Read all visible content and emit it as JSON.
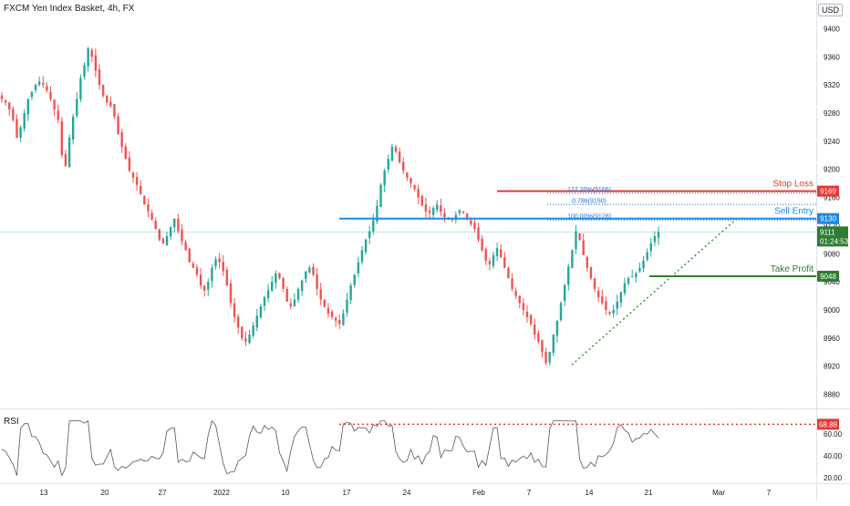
{
  "header": {
    "symbol_title": "FXCM Yen Index Basket, 4h, FX",
    "currency_badge": "USD"
  },
  "price_axis": {
    "ticks": [
      "9400",
      "9360",
      "9320",
      "9280",
      "9240",
      "9200",
      "9160",
      "9120",
      "9080",
      "9040",
      "9000",
      "8960",
      "8920",
      "8880"
    ]
  },
  "rsi_axis": {
    "ticks": [
      "60.00",
      "40.00",
      "20.00"
    ]
  },
  "time_axis": {
    "ticks": [
      "13",
      "20",
      "27",
      "2022",
      "10",
      "17",
      "24",
      "Feb",
      "7",
      "14",
      "21",
      "Mar",
      "7"
    ]
  },
  "levels": {
    "stop_loss": {
      "label": "Stop Loss",
      "value": "9169",
      "color": "#e53935"
    },
    "sell_entry": {
      "label": "Sell Entry",
      "value": "9130",
      "color": "#1e88e5"
    },
    "take_profit": {
      "label": "Take Profit",
      "value": "9048",
      "color": "#2e7d32"
    },
    "current": {
      "value": "9111",
      "countdown": "01:24:53",
      "color": "#2e7d32"
    }
  },
  "fib_labels": {
    "ext_127": "127.20%(9166)",
    "ret_786": "0.786(9150)",
    "ext_100": "100.00%(9128)"
  },
  "rsi": {
    "label": "RSI",
    "level": "68.88",
    "level_color": "#e53935"
  },
  "chart_data": {
    "type": "candlestick",
    "timeframe": "4h",
    "ylim": [
      8860,
      9420
    ],
    "series": [
      {
        "values": [
          9300,
          9295,
          9285,
          9270,
          9245,
          9260,
          9280,
          9300,
          9310,
          9320,
          9325,
          9320,
          9312,
          9300,
          9285,
          9270,
          9220,
          9205,
          9245,
          9275,
          9300,
          9330,
          9348,
          9372,
          9360,
          9340,
          9320,
          9305,
          9295,
          9290,
          9275,
          9250,
          9232,
          9215,
          9198,
          9188,
          9178,
          9165,
          9150,
          9140,
          9128,
          9115,
          9100,
          9095,
          9105,
          9118,
          9130,
          9112,
          9098,
          9085,
          9068,
          9060,
          9050,
          9035,
          9028,
          9040,
          9060,
          9072,
          9068,
          9055,
          9035,
          9010,
          8990,
          8975,
          8960,
          8955,
          8965,
          8978,
          8992,
          9005,
          9018,
          9028,
          9040,
          9052,
          9045,
          9030,
          9012,
          9005,
          9015,
          9030,
          9042,
          9055,
          9060,
          9050,
          9030,
          9015,
          9005,
          8995,
          8990,
          8985,
          8980,
          8995,
          9015,
          9035,
          9050,
          9068,
          9085,
          9100,
          9112,
          9128,
          9148,
          9178,
          9198,
          9215,
          9232,
          9225,
          9210,
          9198,
          9188,
          9180,
          9172,
          9160,
          9148,
          9140,
          9138,
          9145,
          9150,
          9140,
          9132,
          9130,
          9128,
          9135,
          9142,
          9138,
          9130,
          9122,
          9115,
          9100,
          9085,
          9070,
          9065,
          9078,
          9088,
          9075,
          9060,
          9045,
          9030,
          9020,
          9010,
          9000,
          8990,
          8980,
          8965,
          8955,
          8940,
          8925,
          8940,
          8965,
          8985,
          9010,
          9035,
          9062,
          9085,
          9112,
          9100,
          9078,
          9060,
          9045,
          9030,
          9018,
          9010,
          9000,
          8995,
          9000,
          9012,
          9025,
          9038,
          9045,
          9048,
          9052,
          9060,
          9070,
          9082,
          9095,
          9105,
          9111
        ],
        "x_start_label": "13",
        "x_end_label": "21"
      }
    ],
    "notes": []
  }
}
